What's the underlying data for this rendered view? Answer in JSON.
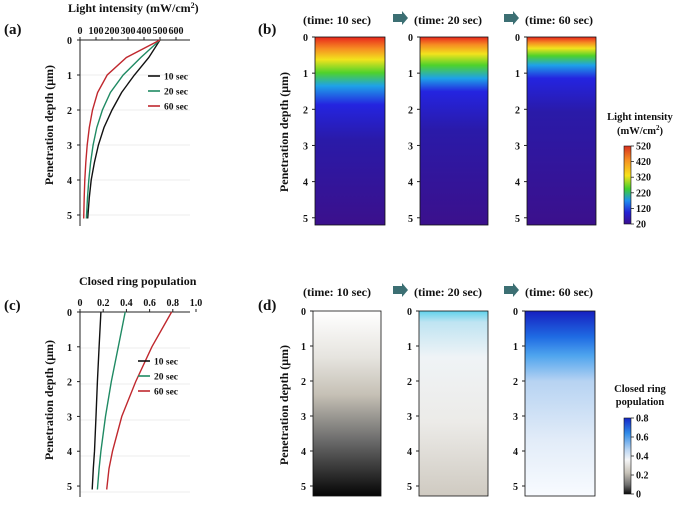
{
  "chart_data": [
    {
      "type": "line",
      "panel_label": "(a)",
      "title": "Light intensity (mW/cm²)",
      "title_text": "Light intensity (mW/cm",
      "title_sup": "2",
      "title_close": ")",
      "ylabel": "Penetration depth (μm)",
      "xlim": [
        0,
        600
      ],
      "ylim": [
        0,
        5.2
      ],
      "xticks": [
        "0",
        "100",
        "200",
        "300",
        "400",
        "500",
        "600"
      ],
      "yticks": [
        "0",
        "1",
        "2",
        "3",
        "4",
        "5"
      ],
      "series": [
        {
          "name": "10 sec",
          "color": "#111111",
          "x": [
            500,
            430,
            340,
            260,
            200,
            150,
            115,
            90,
            70,
            58,
            48
          ],
          "y": [
            0,
            0.5,
            1,
            1.5,
            2,
            2.5,
            3,
            3.5,
            4,
            4.5,
            5.1
          ]
        },
        {
          "name": "20 sec",
          "color": "#1f8a63",
          "x": [
            500,
            380,
            270,
            190,
            140,
            105,
            82,
            66,
            55,
            47,
            40
          ],
          "y": [
            0,
            0.5,
            1,
            1.5,
            2,
            2.5,
            3,
            3.5,
            4,
            4.5,
            5.1
          ]
        },
        {
          "name": "60 sec",
          "color": "#c0282e",
          "x": [
            500,
            290,
            170,
            110,
            78,
            58,
            45,
            36,
            30,
            26,
            23
          ],
          "y": [
            0,
            0.5,
            1,
            1.5,
            2,
            2.5,
            3,
            3.5,
            4,
            4.5,
            5.1
          ]
        }
      ]
    },
    {
      "type": "heatmap",
      "panel_label": "(b)",
      "columns": [
        "(time: 10 sec)",
        "(time: 20 sec)",
        "(time: 60 sec)"
      ],
      "ylabel": "Penetration depth (μm)",
      "yticks": [
        "0",
        "1",
        "2",
        "3",
        "4",
        "5"
      ],
      "colorbar": {
        "title_line1": "Light intensity",
        "title_line2_text": "(mW/cm",
        "title_line2_sup": "2",
        "title_line2_close": ")",
        "ticks": [
          "520",
          "420",
          "320",
          "220",
          "120",
          "20"
        ],
        "colors": [
          "#d7301f",
          "#f58f22",
          "#f7e21b",
          "#3fcf2e",
          "#1f8ff0",
          "#2323d6",
          "#3b0e8f"
        ]
      }
    },
    {
      "type": "line",
      "panel_label": "(c)",
      "title": "Closed ring population",
      "ylabel": "Penetration depth (μm)",
      "xlim": [
        0,
        1.0
      ],
      "ylim": [
        0,
        5.2
      ],
      "xticks": [
        "0",
        "0.2",
        "0.4",
        "0.6",
        "0.8",
        "1.0"
      ],
      "yticks": [
        "0",
        "1",
        "2",
        "3",
        "4",
        "5"
      ],
      "series": [
        {
          "name": "10 sec",
          "color": "#111111",
          "x": [
            0.18,
            0.165,
            0.15,
            0.138,
            0.125,
            0.115,
            0.105
          ],
          "y": [
            0,
            1,
            2,
            3,
            4,
            4.5,
            5.1
          ]
        },
        {
          "name": "20 sec",
          "color": "#1f8a63",
          "x": [
            0.39,
            0.33,
            0.27,
            0.22,
            0.18,
            0.165,
            0.15
          ],
          "y": [
            0,
            1,
            2,
            3,
            4,
            4.5,
            5.1
          ]
        },
        {
          "name": "60 sec",
          "color": "#c0282e",
          "x": [
            0.79,
            0.62,
            0.48,
            0.36,
            0.28,
            0.25,
            0.23
          ],
          "y": [
            0,
            1,
            2,
            3,
            4,
            4.5,
            5.1
          ]
        }
      ]
    },
    {
      "type": "heatmap",
      "panel_label": "(d)",
      "columns": [
        "(time: 10 sec)",
        "(time: 20 sec)",
        "(time: 60 sec)"
      ],
      "ylabel": "Penetration depth (μm)",
      "yticks": [
        "0",
        "1",
        "2",
        "3",
        "4",
        "5"
      ],
      "colorbar": {
        "title_line1": "Closed ring",
        "title_line2_text": "population",
        "ticks": [
          "0.8",
          "0.6",
          "0.4",
          "0.2",
          "0"
        ],
        "colors": [
          "#1528c8",
          "#2f8be8",
          "#bcd6f2",
          "#f5f6f7",
          "#c7c2b8",
          "#6e6e6e",
          "#0a0a0a"
        ]
      }
    }
  ]
}
